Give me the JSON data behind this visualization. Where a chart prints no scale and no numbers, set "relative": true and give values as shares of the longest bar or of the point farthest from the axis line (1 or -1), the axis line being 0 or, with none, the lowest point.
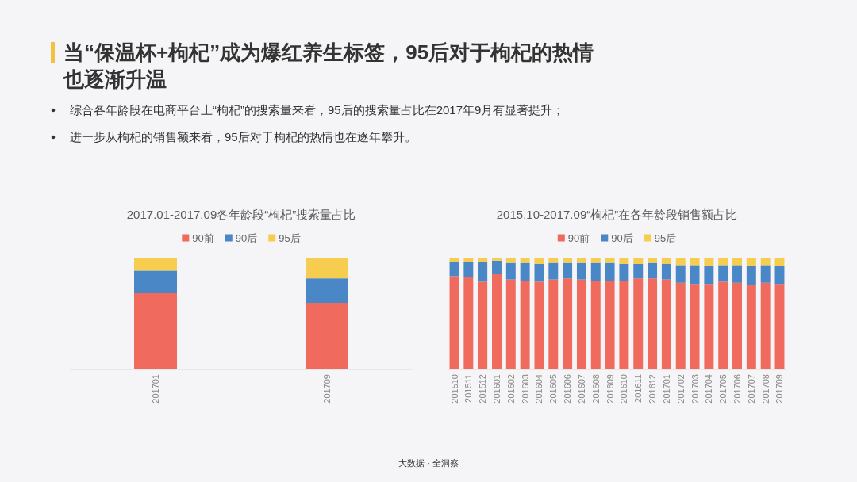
{
  "chart_data": [
    {
      "type": "other",
      "title": "当“保温杯+枸杞”成为爆红养生标签，95后对于枸杞的热情也逐渐升温",
      "annotations": [
        "综合各年龄段在电商平台上“枸杞”的搜索量来看，95后的搜索量占比在2017年9月有显著提升；",
        "进一步从枸杞的销售额来看，95后对于枸杞的热情也在逐年攀升。"
      ]
    },
    {
      "type": "bar",
      "title": "2017.01-2017.09各年龄段“枸杞”搜索量占比",
      "categories": [
        "201701",
        "201709"
      ],
      "stacked": true,
      "relative": true,
      "legend": "top",
      "series": [
        {
          "name": "90前",
          "color": "#f06a5e",
          "values": [
            0.69,
            0.6
          ]
        },
        {
          "name": "90后",
          "color": "#4a87c6",
          "values": [
            0.2,
            0.22
          ]
        },
        {
          "name": "95后",
          "color": "#f6cd4e",
          "values": [
            0.11,
            0.18
          ]
        }
      ]
    },
    {
      "type": "bar",
      "title": "2015.10-2017.09“枸杞”在各年龄段销售额占比",
      "categories": [
        "201510",
        "201511",
        "201512",
        "201601",
        "201602",
        "201603",
        "201604",
        "201605",
        "201606",
        "201607",
        "201608",
        "201609",
        "201610",
        "201611",
        "201612",
        "201701",
        "201702",
        "201703",
        "201704",
        "201705",
        "201706",
        "201707",
        "201708",
        "201709"
      ],
      "stacked": true,
      "relative": true,
      "legend": "top",
      "series": [
        {
          "name": "90前",
          "color": "#f06a5e",
          "values": [
            0.84,
            0.83,
            0.79,
            0.86,
            0.81,
            0.8,
            0.79,
            0.81,
            0.82,
            0.81,
            0.8,
            0.8,
            0.8,
            0.82,
            0.82,
            0.81,
            0.78,
            0.77,
            0.77,
            0.79,
            0.78,
            0.76,
            0.78,
            0.77
          ]
        },
        {
          "name": "90后",
          "color": "#4a87c6",
          "values": [
            0.13,
            0.14,
            0.18,
            0.12,
            0.15,
            0.16,
            0.16,
            0.15,
            0.14,
            0.15,
            0.16,
            0.16,
            0.15,
            0.13,
            0.14,
            0.14,
            0.16,
            0.17,
            0.16,
            0.15,
            0.16,
            0.17,
            0.16,
            0.16
          ]
        },
        {
          "name": "95后",
          "color": "#f6cd4e",
          "values": [
            0.03,
            0.03,
            0.03,
            0.02,
            0.04,
            0.04,
            0.05,
            0.04,
            0.04,
            0.04,
            0.04,
            0.04,
            0.05,
            0.05,
            0.04,
            0.05,
            0.06,
            0.06,
            0.07,
            0.06,
            0.06,
            0.07,
            0.06,
            0.07
          ]
        }
      ]
    },
    {
      "type": "other",
      "annotations": [
        "大数据 · 全洞察"
      ]
    }
  ]
}
